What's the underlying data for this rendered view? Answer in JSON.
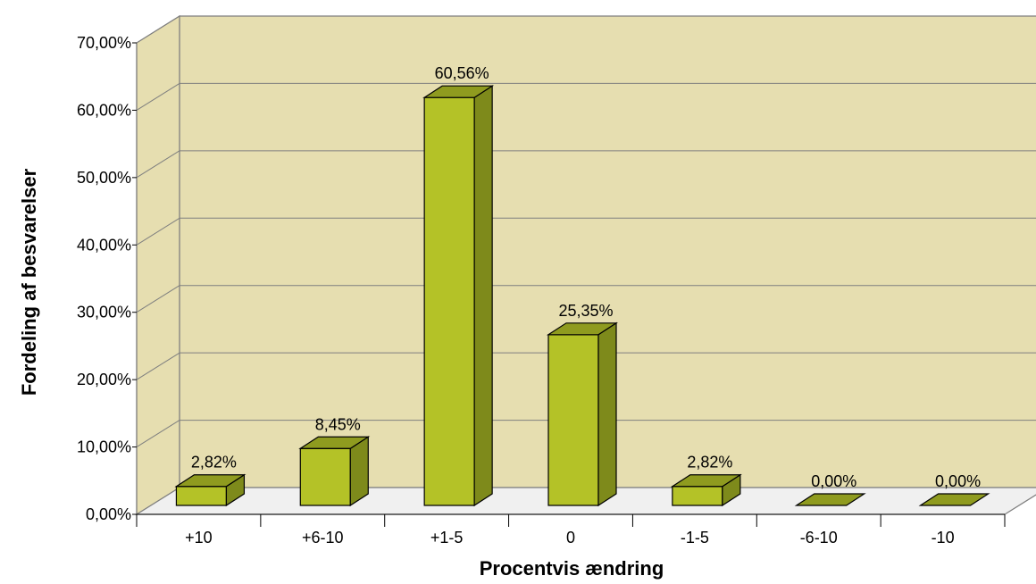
{
  "chart_data": {
    "type": "bar",
    "style": "3d-column",
    "title": "",
    "xlabel": "Procentvis ændring",
    "ylabel": "Fordeling af besvarelser",
    "ylim": [
      0,
      70
    ],
    "yticks": [
      "0,00%",
      "10,00%",
      "20,00%",
      "30,00%",
      "40,00%",
      "50,00%",
      "60,00%",
      "70,00%"
    ],
    "categories": [
      "+10",
      "+6-10",
      "+1-5",
      "0",
      "-1-5",
      "-6-10",
      "-10"
    ],
    "values": [
      2.82,
      8.45,
      60.56,
      25.35,
      2.82,
      0.0,
      0.0
    ],
    "data_labels": [
      "2,82%",
      "8,45%",
      "60,56%",
      "25,35%",
      "2,82%",
      "0,00%",
      "0,00%"
    ],
    "grid": true,
    "legend": "none",
    "colors": {
      "wall": "#E6DEB0",
      "floor": "#F0F0F0",
      "bar_front": "#B4C227",
      "bar_side": "#7E8A1B",
      "bar_top": "#8F9B1F",
      "grid": "#7F7F7F"
    }
  }
}
